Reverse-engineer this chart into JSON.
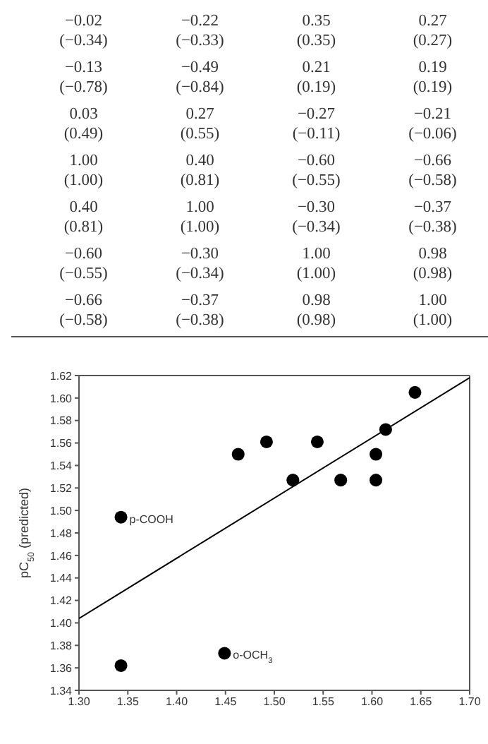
{
  "chart_data": [
    {
      "type": "other",
      "annotations": [
        "−0.02",
        "(−0.34)",
        "−0.22",
        "(−0.33)",
        "0.35",
        "(0.35)",
        "0.27",
        "(0.27)",
        "−0.13",
        "(−0.78)",
        "−0.49",
        "(−0.84)",
        "0.21",
        "(0.19)",
        "0.19",
        "(0.19)",
        "0.03",
        "(0.49)",
        "0.27",
        "(0.55)",
        "−0.27",
        "(−0.11)",
        "−0.21",
        "(−0.06)",
        "1.00",
        "(1.00)",
        "0.40",
        "(0.81)",
        "−0.60",
        "(−0.55)",
        "−0.66",
        "(−0.58)",
        "0.40",
        "(0.81)",
        "1.00",
        "(1.00)",
        "−0.30",
        "(−0.34)",
        "−0.37",
        "(−0.38)",
        "−0.60",
        "(−0.55)",
        "−0.30",
        "(−0.34)",
        "1.00",
        "(1.00)",
        "0.98",
        "(0.98)",
        "−0.66",
        "(−0.58)",
        "−0.37",
        "(−0.38)",
        "0.98",
        "(0.98)",
        "1.00",
        "(1.00)"
      ]
    },
    {
      "type": "scatter",
      "ylabel": "pC$_{50}$ (predicted)",
      "xlim": [
        1.3,
        1.7
      ],
      "ylim": [
        1.34,
        1.62
      ],
      "xticks": [
        {
          "value": 1.3,
          "label": "1.30"
        },
        {
          "value": 1.35,
          "label": "1.35"
        },
        {
          "value": 1.4,
          "label": "1.40"
        },
        {
          "value": 1.45,
          "label": "1.45"
        },
        {
          "value": 1.5,
          "label": "1.50"
        },
        {
          "value": 1.55,
          "label": "1.55"
        },
        {
          "value": 1.6,
          "label": "1.60"
        },
        {
          "value": 1.65,
          "label": "1.65"
        },
        {
          "value": 1.7,
          "label": "1.70"
        }
      ],
      "yticks": [
        {
          "value": 1.34,
          "label": "1.34"
        },
        {
          "value": 1.36,
          "label": "1.36"
        },
        {
          "value": 1.38,
          "label": "1.38"
        },
        {
          "value": 1.4,
          "label": "1.40"
        },
        {
          "value": 1.42,
          "label": "1.42"
        },
        {
          "value": 1.44,
          "label": "1.44"
        },
        {
          "value": 1.46,
          "label": "1.46"
        },
        {
          "value": 1.48,
          "label": "1.48"
        },
        {
          "value": 1.5,
          "label": "1.50"
        },
        {
          "value": 1.52,
          "label": "1.52"
        },
        {
          "value": 1.54,
          "label": "1.54"
        },
        {
          "value": 1.56,
          "label": "1.56"
        },
        {
          "value": 1.58,
          "label": "1.58"
        },
        {
          "value": 1.6,
          "label": "1.60"
        },
        {
          "value": 1.62,
          "label": "1.62"
        }
      ],
      "series": [
        {
          "type": "scatter",
          "marker": "circle",
          "color": "#000000",
          "x": [
            1.343,
            1.343,
            1.449,
            1.463,
            1.492,
            1.519,
            1.544,
            1.568,
            1.604,
            1.604,
            1.614,
            1.644
          ],
          "values": [
            1.494,
            1.362,
            1.373,
            1.55,
            1.561,
            1.527,
            1.561,
            1.527,
            1.55,
            1.527,
            1.572,
            1.605
          ]
        },
        {
          "type": "line",
          "marker": "none",
          "color": "#000000",
          "x": [
            1.3,
            1.7
          ],
          "values": [
            1.404,
            1.618
          ]
        }
      ],
      "annotations": [
        {
          "text": "p-COOH",
          "x": 1.343,
          "y": 1.494
        },
        {
          "text": "o-OCH$_{3}$",
          "x": 1.449,
          "y": 1.373
        }
      ]
    }
  ]
}
